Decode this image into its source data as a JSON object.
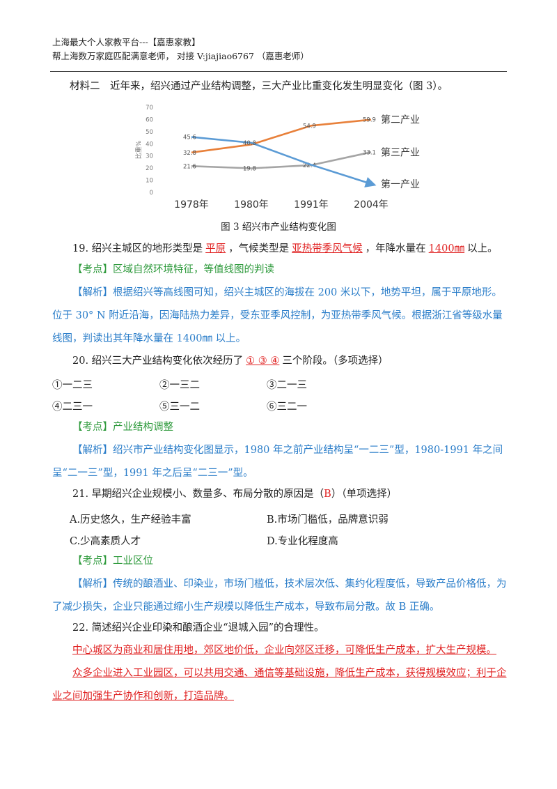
{
  "header": {
    "lines": [
      "上海最大个人家教平台---【嘉惠家教】",
      "帮上海数万家庭匹配满意老师， 对接 V:jiajiao6767 （嘉惠老师）"
    ]
  },
  "material": "材料二　近年来，绍兴通过产业结构调整，三大产业比重变化发生明显变化（图 3）。",
  "chart_data": {
    "type": "line",
    "caption": "图 3 绍兴市产业结构变化图",
    "ylabel": "比重%",
    "categories": [
      "1978年",
      "1980年",
      "1991年",
      "2004年"
    ],
    "series": [
      {
        "name": "第二产业",
        "color": "#e8803a",
        "values": [
          32.8,
          39.4,
          54.9,
          59.9
        ],
        "value_labels": [
          "32.8",
          null,
          "54.9",
          "59.9"
        ]
      },
      {
        "name": "第三产业",
        "color": "#a5a5a5",
        "values": [
          21.6,
          19.8,
          22.4,
          33.1
        ],
        "value_labels": [
          "21.6",
          "19.8",
          "22.4",
          "33.1"
        ]
      },
      {
        "name": "第一产业",
        "color": "#5b9bd5",
        "values": [
          45.6,
          40.8,
          22.7,
          7
        ],
        "value_labels": [
          "45.6",
          "40.8",
          null,
          null
        ]
      }
    ],
    "ylim": [
      0,
      70
    ],
    "yticks": [
      0,
      10,
      20,
      30,
      40,
      50,
      60,
      70
    ],
    "grid": false
  },
  "questions": [
    {
      "stem": [
        "19. 绍兴主城区的地形类型是",
        "，气候类型是",
        "，年降水量在",
        "以上。"
      ],
      "answers": [
        "平原",
        "亚热带季风气候",
        "1400㎜"
      ],
      "kaodian": {
        "tag": "【考点】",
        "text": "区域自然环境特征，等值线图的判读"
      },
      "jiexi": {
        "tag": "【解析】",
        "text": "根据绍兴等高线图可知，绍兴主城区的海拔在 200 米以下，地势平坦，属于平原地形。位于 30° N 附近沿海，因海陆热力差异，受东亚季风控制，为亚热带季风气候。根据浙江省等级水量线图，判读出其年降水量在 1400㎜ 以上。"
      }
    },
    {
      "stem": [
        "20. 绍兴三大产业结构变化依次经历了",
        "三个阶段。（多项选择）"
      ],
      "answers": [
        "① ③ ④"
      ],
      "options": [
        "①一二三",
        "②一三二",
        "③二一三",
        "④二三一",
        "⑤三一二",
        "⑥三二一"
      ],
      "kaodian": {
        "tag": "【考点】",
        "text": "产业结构调整"
      },
      "jiexi": {
        "tag": "【解析】",
        "text": "绍兴市产业结构变化图显示，1980 年之前产业结构呈“一二三”型，1980-1991 年之间呈“二一三”型，1991 年之后呈“二三一”型。"
      }
    },
    {
      "stem": [
        "21. 早期绍兴企业规模小、数量多、布局分散的原因是（",
        "）（单项选择）"
      ],
      "answers": [
        "B"
      ],
      "options": [
        "A.历史悠久，生产经验丰富",
        "B.市场门槛低，品牌意识弱",
        "C.少高素质人才",
        "D.专业化程度高"
      ],
      "kaodian": {
        "tag": "【考点】",
        "text": "工业区位"
      },
      "jiexi": {
        "tag": "【解析】",
        "text": "传统的酿酒业、印染业，市场门槛低，技术层次低、集约化程度低，导致产品价格低，为了减少损失，企业只能通过缩小生产规模以降低生产成本，导致布局分散。故 B 正确。"
      }
    },
    {
      "stem": [
        "22. 简述绍兴企业印染和酿酒企业“退城入园”的合理性。"
      ],
      "answer_paragraphs": [
        "中心城区为商业和居住用地，郊区地价低，企业向郊区迁移，可降低生产成本，扩大生产规模。",
        "众多企业进入工业园区，可以共用交通、通信等基础设施，降低生产成本，获得规模效应；利于企业之间加强生产协作和创新，打造品牌。"
      ]
    }
  ]
}
